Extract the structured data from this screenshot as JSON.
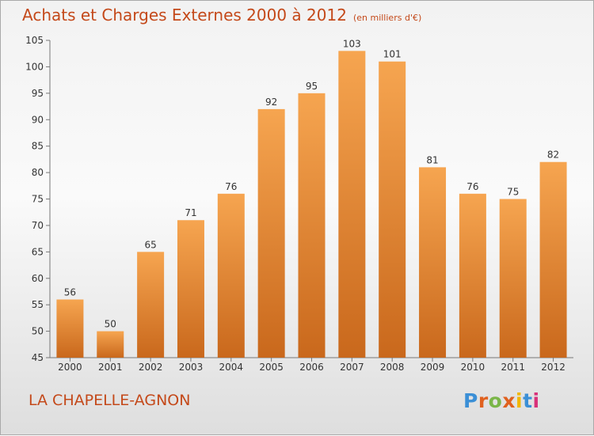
{
  "title": "Achats et Charges Externes 2000 à 2012",
  "unit": "(en milliers d'€)",
  "commune": "LA CHAPELLE-AGNON",
  "logo": {
    "text": "Proxiti",
    "letter_colors": [
      "#3b8fd6",
      "#e0611f",
      "#7ab648",
      "#e0611f",
      "#f2b705",
      "#3b8fd6",
      "#d8327a"
    ]
  },
  "colors": {
    "bar_top": "#f6a550",
    "bar_bottom": "#c9681c",
    "title": "#c4491a",
    "text": "#333333"
  },
  "chart_data": {
    "type": "bar",
    "categories": [
      "2000",
      "2001",
      "2002",
      "2003",
      "2004",
      "2005",
      "2006",
      "2007",
      "2008",
      "2009",
      "2010",
      "2011",
      "2012"
    ],
    "values": [
      56,
      50,
      65,
      71,
      76,
      92,
      95,
      103,
      101,
      81,
      76,
      75,
      82
    ],
    "data_labels": [
      "56",
      "50",
      "65",
      "71",
      "76",
      "92",
      "95",
      "103",
      "101",
      "81",
      "76",
      "75",
      "82"
    ],
    "ylim": [
      45,
      105
    ],
    "yticks": [
      45,
      50,
      55,
      60,
      65,
      70,
      75,
      80,
      85,
      90,
      95,
      100,
      105
    ],
    "grid": false,
    "legend": "none"
  }
}
